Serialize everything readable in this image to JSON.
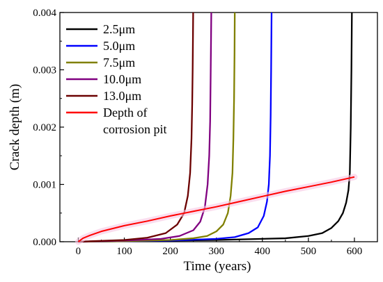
{
  "chart_data": {
    "type": "line",
    "xlabel": "Time (years)",
    "ylabel": "Crack depth (m)",
    "xlim": [
      -40,
      650
    ],
    "ylim": [
      0,
      0.004
    ],
    "x_ticks": [
      0,
      100,
      200,
      300,
      400,
      500,
      600
    ],
    "x_tick_labels": [
      "0",
      "100",
      "200",
      "300",
      "400",
      "500",
      "600"
    ],
    "y_ticks": [
      0,
      0.001,
      0.002,
      0.003,
      0.004
    ],
    "y_tick_labels": [
      "0.000",
      "0.001",
      "0.002",
      "0.003",
      "0.004"
    ],
    "grid": false,
    "legend_position": "top-left",
    "series": [
      {
        "name": "2.5μm",
        "color": "#000000",
        "x": [
          0,
          100,
          200,
          300,
          400,
          450,
          500,
          530,
          550,
          565,
          575,
          582,
          587,
          590,
          592,
          593.5,
          594.5
        ],
        "y": [
          0,
          1e-05,
          2e-05,
          3e-05,
          5e-05,
          6e-05,
          0.0001,
          0.00015,
          0.00024,
          0.00036,
          0.0005,
          0.00068,
          0.0009,
          0.0012,
          0.002,
          0.003,
          0.004
        ]
      },
      {
        "name": "5.0μm",
        "color": "#0000ff",
        "x": [
          0,
          100,
          200,
          300,
          340,
          370,
          390,
          403,
          410,
          414,
          416.5,
          418,
          419,
          420
        ],
        "y": [
          0,
          1e-05,
          2e-05,
          5e-05,
          8e-05,
          0.00015,
          0.00025,
          0.00045,
          0.0007,
          0.001,
          0.0015,
          0.0022,
          0.003,
          0.004
        ]
      },
      {
        "name": "7.5μm",
        "color": "#808000",
        "x": [
          0,
          100,
          200,
          250,
          280,
          300,
          315,
          325,
          331,
          335,
          337,
          338.5,
          339.5,
          340
        ],
        "y": [
          0,
          1e-05,
          3e-05,
          6e-05,
          0.0001,
          0.00018,
          0.0003,
          0.0005,
          0.0008,
          0.0012,
          0.0018,
          0.0025,
          0.0033,
          0.004
        ]
      },
      {
        "name": "10.0μm",
        "color": "#800080",
        "x": [
          0,
          100,
          180,
          220,
          250,
          265,
          275,
          281,
          284.5,
          286.5,
          287.5,
          288.5,
          289
        ],
        "y": [
          0,
          2e-05,
          5e-05,
          0.0001,
          0.0002,
          0.00035,
          0.0006,
          0.001,
          0.0015,
          0.0021,
          0.0028,
          0.0036,
          0.004
        ]
      },
      {
        "name": "13.0μm",
        "color": "#6b0000",
        "x": [
          0,
          100,
          150,
          190,
          215,
          230,
          238,
          243,
          246,
          247.5,
          248.5,
          249.2,
          249.6
        ],
        "y": [
          0,
          3e-05,
          7e-05,
          0.00015,
          0.0003,
          0.0005,
          0.0008,
          0.0012,
          0.0018,
          0.0024,
          0.003,
          0.0036,
          0.004
        ]
      },
      {
        "name": "Depth of corrosion pit",
        "color": "#ff0000",
        "x": [
          0,
          10,
          25,
          50,
          100,
          150,
          200,
          250,
          300,
          350,
          400,
          450,
          500,
          550,
          600
        ],
        "y": [
          0,
          6e-05,
          0.00011,
          0.00018,
          0.00028,
          0.00036,
          0.00045,
          0.00053,
          0.00061,
          0.0007,
          0.00079,
          0.00088,
          0.00096,
          0.00104,
          0.00113
        ]
      }
    ]
  }
}
